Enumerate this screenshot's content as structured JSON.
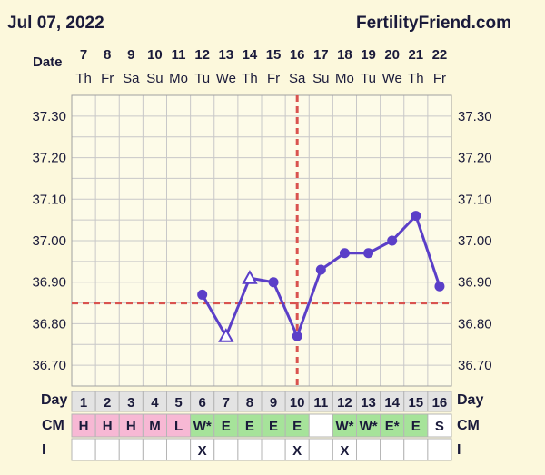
{
  "header": {
    "date": "Jul 07, 2022",
    "brand": "FertilityFriend.com"
  },
  "row_labels": {
    "date": "Date",
    "day": "Day",
    "cm": "CM",
    "intercourse": "I"
  },
  "colors": {
    "background": "#fcf8dc",
    "grid": "#c8c8c8",
    "line": "#5b3fc8",
    "coverline": "#d9534f",
    "text": "#1a1a3a",
    "cm_pink": "#f7b8d4",
    "cm_green": "#a6e39a",
    "cell_white": "#ffffff",
    "day_cell": "#e3e3e3"
  },
  "chart_data": {
    "type": "line",
    "title": "",
    "xlabel": "Day",
    "ylabel": "",
    "ylim": [
      36.65,
      37.35
    ],
    "y_ticks": [
      "37.30",
      "37.20",
      "37.10",
      "37.00",
      "36.90",
      "36.80",
      "36.70"
    ],
    "grid": true,
    "cycle_days": [
      1,
      2,
      3,
      4,
      5,
      6,
      7,
      8,
      9,
      10,
      11,
      12,
      13,
      14,
      15,
      16
    ],
    "dates": [
      "7",
      "8",
      "9",
      "10",
      "11",
      "12",
      "13",
      "14",
      "15",
      "16",
      "17",
      "18",
      "19",
      "20",
      "21",
      "22"
    ],
    "weekdays": [
      "Th",
      "Fr",
      "Sa",
      "Su",
      "Mo",
      "Tu",
      "We",
      "Th",
      "Fr",
      "Sa",
      "Su",
      "Mo",
      "Tu",
      "We",
      "Th",
      "Fr"
    ],
    "temperatures": [
      null,
      null,
      null,
      null,
      null,
      36.87,
      36.77,
      36.91,
      36.9,
      36.77,
      36.93,
      36.97,
      36.97,
      37.0,
      37.06,
      36.89
    ],
    "open_markers": [
      7,
      8
    ],
    "coverline": 36.85,
    "ovulation_day": 10,
    "cervical_mucus": [
      "H",
      "H",
      "H",
      "M",
      "L",
      "W*",
      "E",
      "E",
      "E",
      "E",
      "",
      "W*",
      "W*",
      "E*",
      "E",
      "S"
    ],
    "intercourse": [
      "",
      "",
      "",
      "",
      "",
      "X",
      "",
      "",
      "",
      "X",
      "",
      "X",
      "",
      "",
      "",
      ""
    ]
  }
}
